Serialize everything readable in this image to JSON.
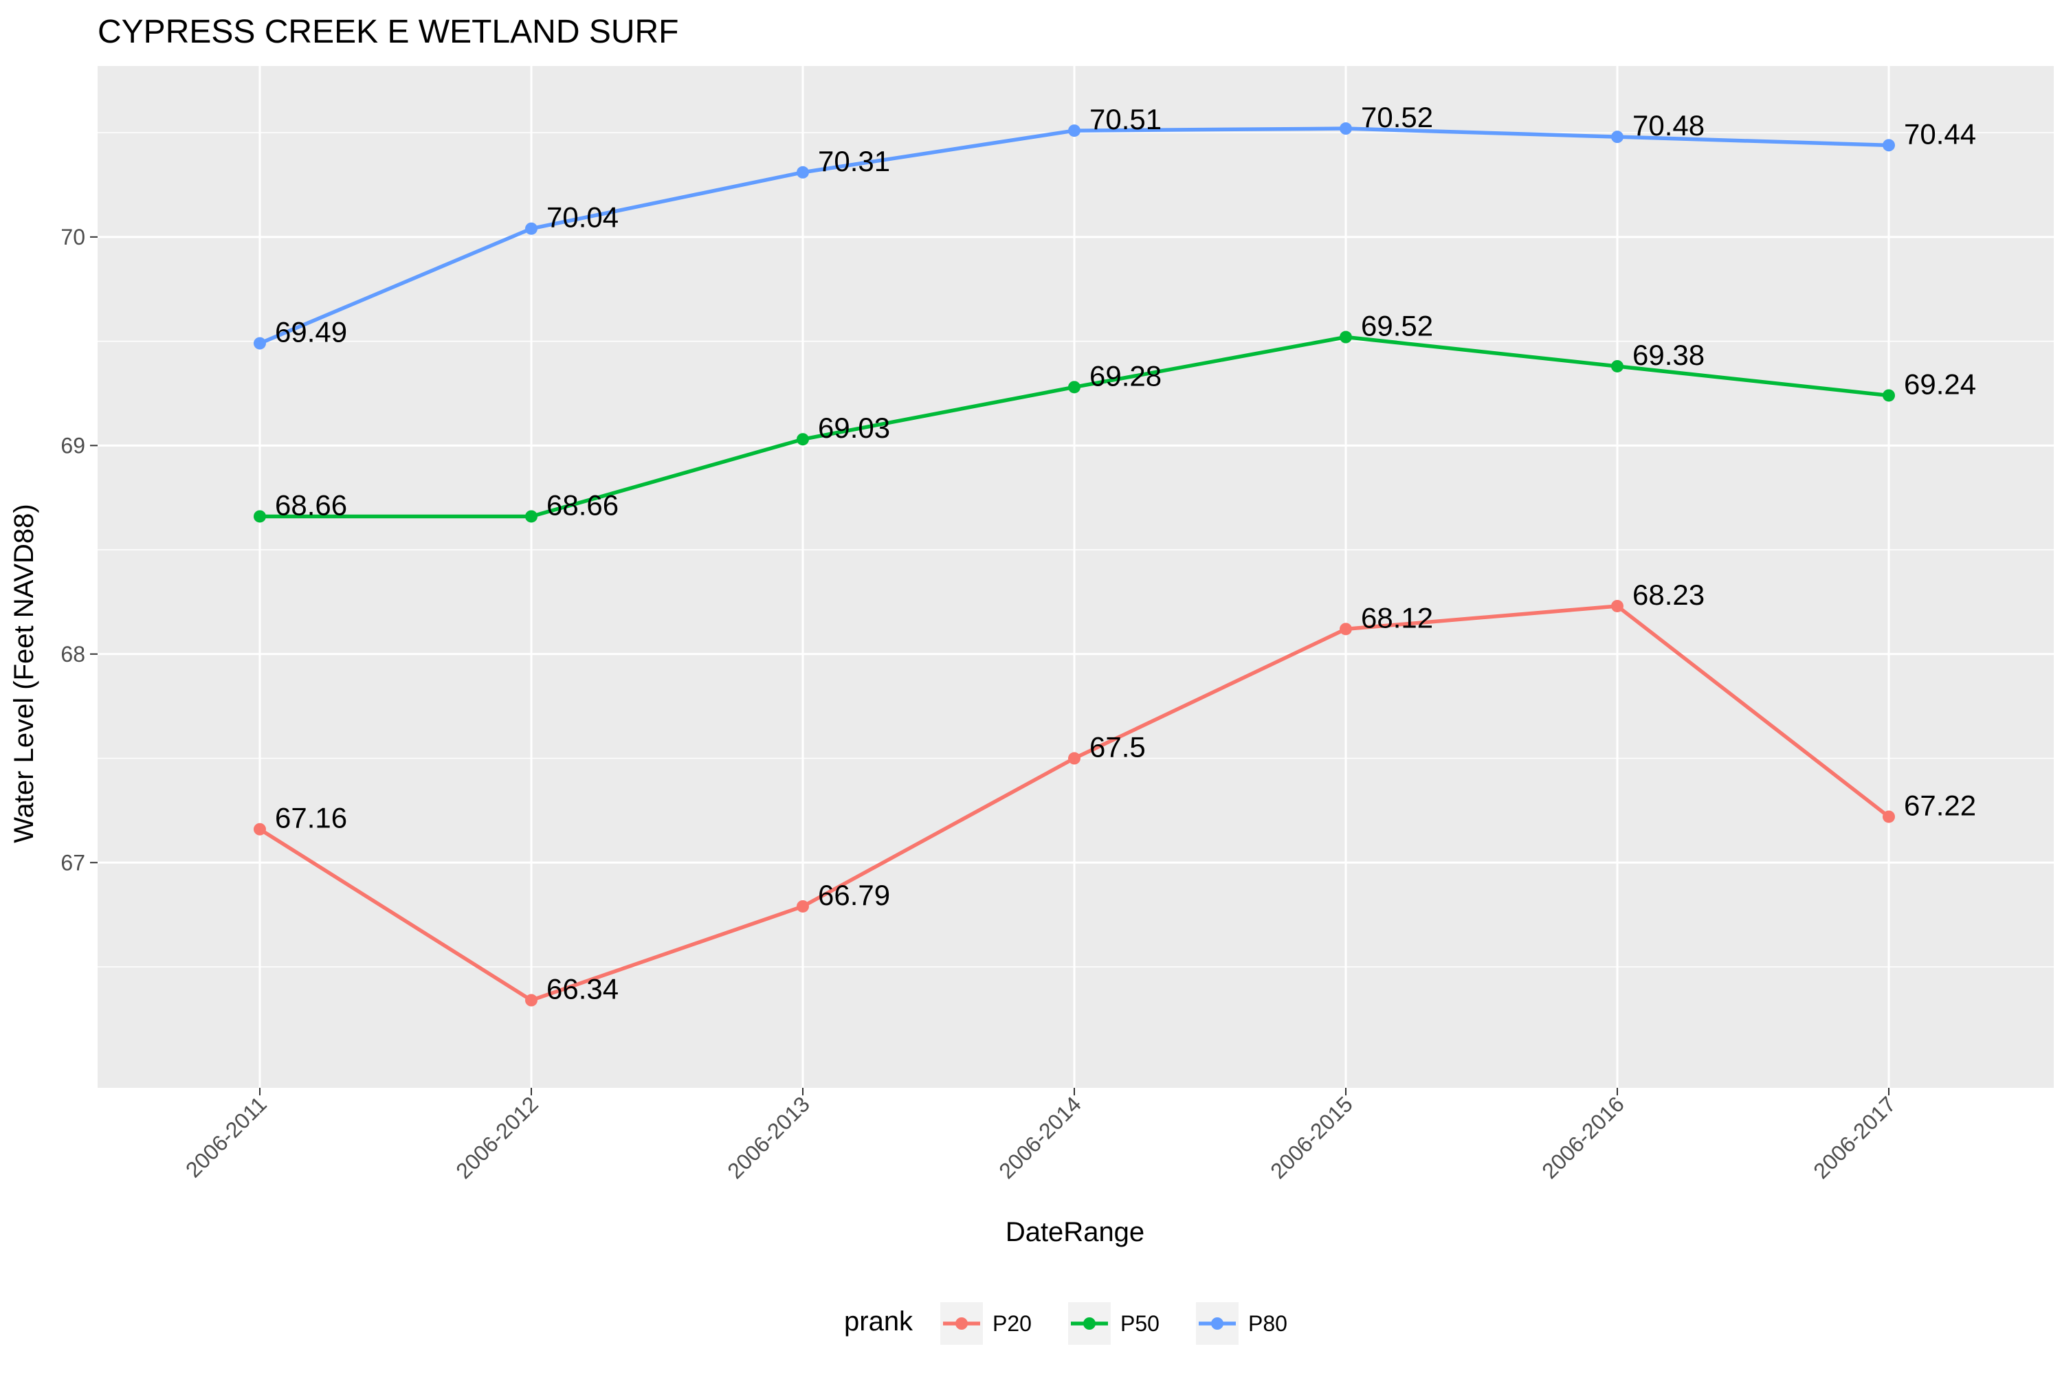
{
  "chart_data": {
    "type": "line",
    "title": "CYPRESS CREEK E WETLAND SURF",
    "xlabel": "DateRange",
    "ylabel": "Water Level (Feet NAVD88)",
    "categories": [
      "2006-2011",
      "2006-2012",
      "2006-2013",
      "2006-2014",
      "2006-2015",
      "2006-2016",
      "2006-2017"
    ],
    "ylim": [
      65.92,
      70.82
    ],
    "yticks": [
      67,
      68,
      69,
      70
    ],
    "grid": true,
    "legend": {
      "title": "prank",
      "position": "bottom"
    },
    "series": [
      {
        "name": "P20",
        "color": "#F8766D",
        "values": [
          67.16,
          66.34,
          66.79,
          67.5,
          68.12,
          68.23,
          67.22
        ],
        "labels": [
          "67.16",
          "66.34",
          "66.79",
          "67.5",
          "68.12",
          "68.23",
          "67.22"
        ]
      },
      {
        "name": "P50",
        "color": "#00BA38",
        "values": [
          68.66,
          68.66,
          69.03,
          69.28,
          69.52,
          69.38,
          69.24
        ],
        "labels": [
          "68.66",
          "68.66",
          "69.03",
          "69.28",
          "69.52",
          "69.38",
          "69.24"
        ]
      },
      {
        "name": "P80",
        "color": "#619CFF",
        "values": [
          69.49,
          70.04,
          70.31,
          70.51,
          70.52,
          70.48,
          70.44
        ],
        "labels": [
          "69.49",
          "70.04",
          "70.31",
          "70.51",
          "70.52",
          "70.48",
          "70.44"
        ]
      }
    ]
  }
}
